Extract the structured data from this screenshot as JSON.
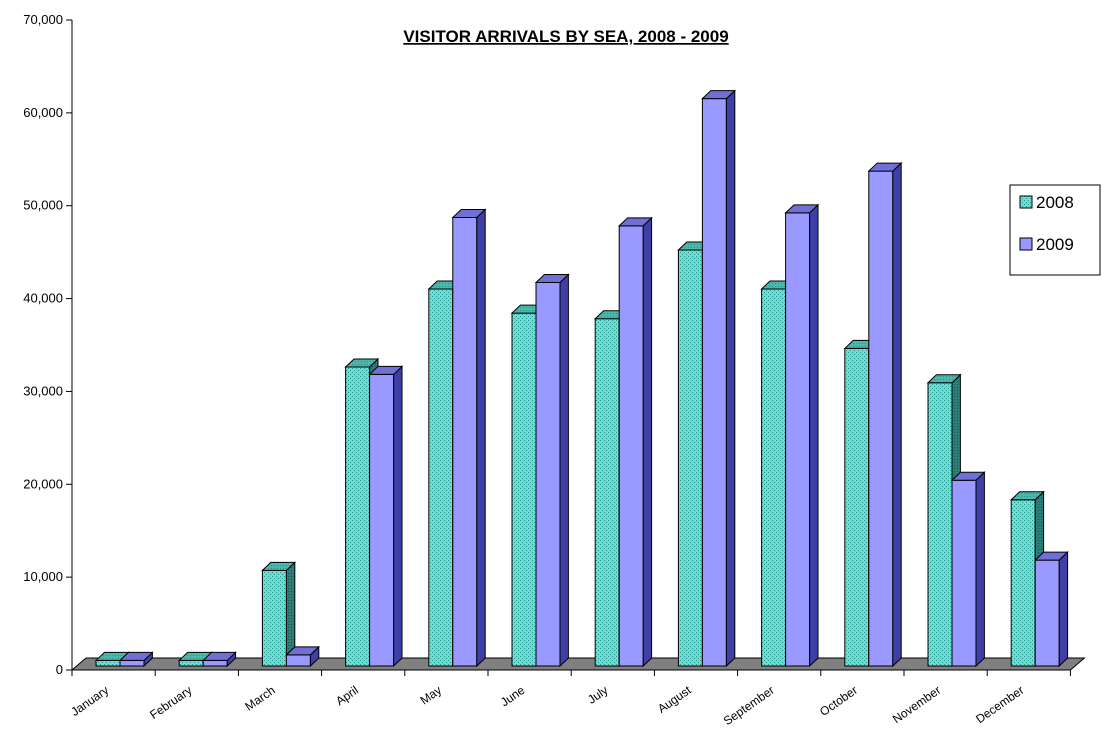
{
  "chart_data": {
    "type": "bar",
    "title": "VISITOR ARRIVALS BY SEA, 2008 - 2009",
    "xlabel": "",
    "ylabel": "",
    "ylim": [
      0,
      70000
    ],
    "yticks": [
      "0",
      "10,000",
      "20,000",
      "30,000",
      "40,000",
      "50,000",
      "60,000",
      "70,000"
    ],
    "categories": [
      "January",
      "February",
      "March",
      "April",
      "May",
      "June",
      "July",
      "August",
      "September",
      "October",
      "November",
      "December"
    ],
    "series": [
      {
        "name": "2008",
        "color": "#66e0d6",
        "values": [
          600,
          600,
          10300,
          32200,
          40600,
          38000,
          37400,
          44800,
          40600,
          34200,
          30500,
          17900
        ]
      },
      {
        "name": "2009",
        "color": "#9999ff",
        "values": [
          600,
          600,
          1200,
          31400,
          48300,
          41300,
          47400,
          61100,
          48800,
          53300,
          20000,
          11400
        ]
      }
    ],
    "grid": false,
    "legend": "right",
    "style": "3d-clustered-column"
  }
}
